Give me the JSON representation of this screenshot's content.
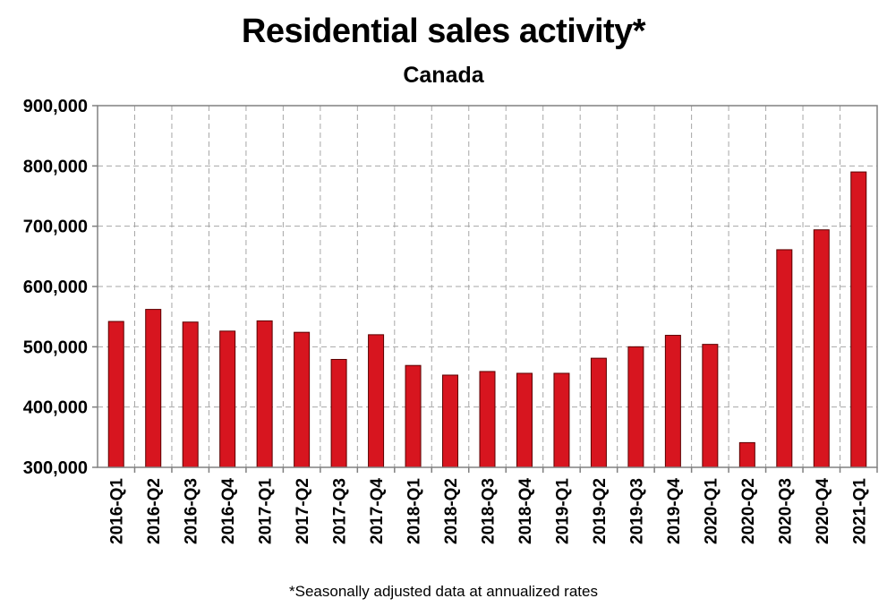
{
  "title": "Residential sales activity*",
  "subtitle": "Canada",
  "footnote": "*Seasonally adjusted data at annualized rates",
  "colors": {
    "bar": "#d7151f",
    "bar_edge": "#5a0000",
    "grid": "#a6a6a6",
    "axis": "#808080"
  },
  "chart_data": {
    "type": "bar",
    "title": "Residential sales activity*",
    "subtitle": "Canada",
    "xlabel": "",
    "ylabel": "",
    "ylim": [
      300000,
      900000
    ],
    "yticks": [
      300000,
      400000,
      500000,
      600000,
      700000,
      800000,
      900000
    ],
    "ytick_labels": [
      "300,000",
      "400,000",
      "500,000",
      "600,000",
      "700,000",
      "800,000",
      "900,000"
    ],
    "grid": true,
    "categories": [
      "2016-Q1",
      "2016-Q2",
      "2016-Q3",
      "2016-Q4",
      "2017-Q1",
      "2017-Q2",
      "2017-Q3",
      "2017-Q4",
      "2018-Q1",
      "2018-Q2",
      "2018-Q3",
      "2018-Q4",
      "2019-Q1",
      "2019-Q2",
      "2019-Q3",
      "2019-Q4",
      "2020-Q1",
      "2020-Q2",
      "2020-Q3",
      "2020-Q4",
      "2021-Q1"
    ],
    "values": [
      542000,
      562000,
      541000,
      526000,
      543000,
      524000,
      479000,
      520000,
      469000,
      453000,
      459000,
      456000,
      456000,
      481000,
      500000,
      519000,
      504000,
      341000,
      661000,
      694000,
      790000
    ]
  }
}
